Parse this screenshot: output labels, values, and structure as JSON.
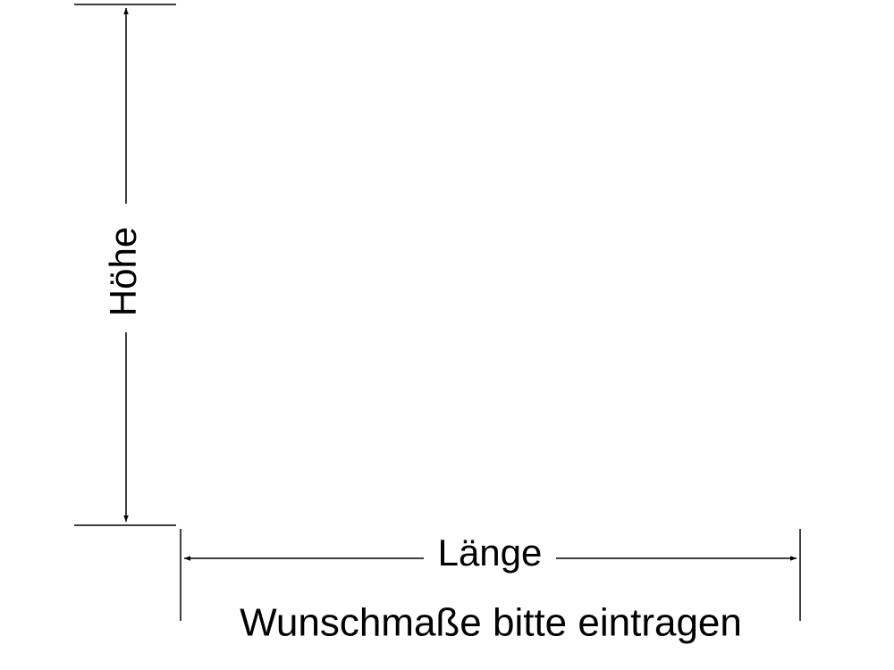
{
  "height_label": "Höhe",
  "length_label": "Länge",
  "caption": "Wunschmaße bitte eintragen"
}
